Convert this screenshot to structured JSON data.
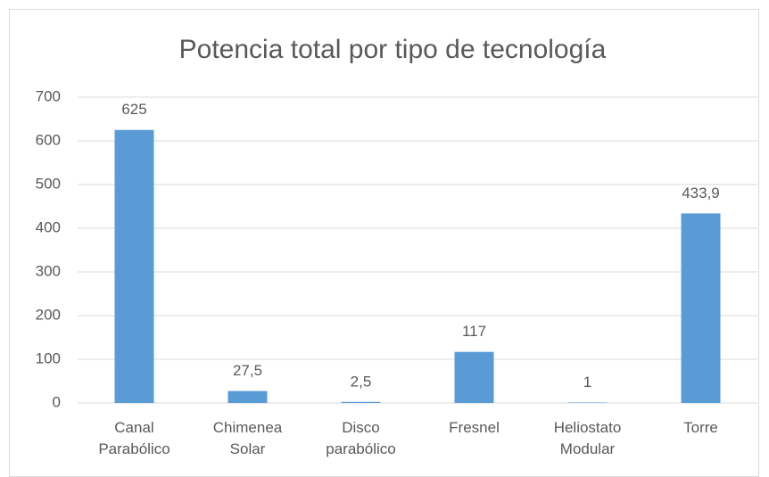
{
  "chart_data": {
    "type": "bar",
    "title": "Potencia total por tipo de tecnología",
    "categories": [
      "Canal Parabólico",
      "Chimenea Solar",
      "Disco parabólico",
      "Fresnel",
      "Heliostato Modular",
      "Torre"
    ],
    "values": [
      625,
      27.5,
      2.5,
      117,
      1,
      433.9
    ],
    "value_labels": [
      "625",
      "27,5",
      "2,5",
      "117",
      "1",
      "433,9"
    ],
    "color": "#5b9bd5",
    "ylim": [
      0,
      700
    ],
    "yticks": [
      0,
      100,
      200,
      300,
      400,
      500,
      600,
      700
    ],
    "grid": true
  }
}
